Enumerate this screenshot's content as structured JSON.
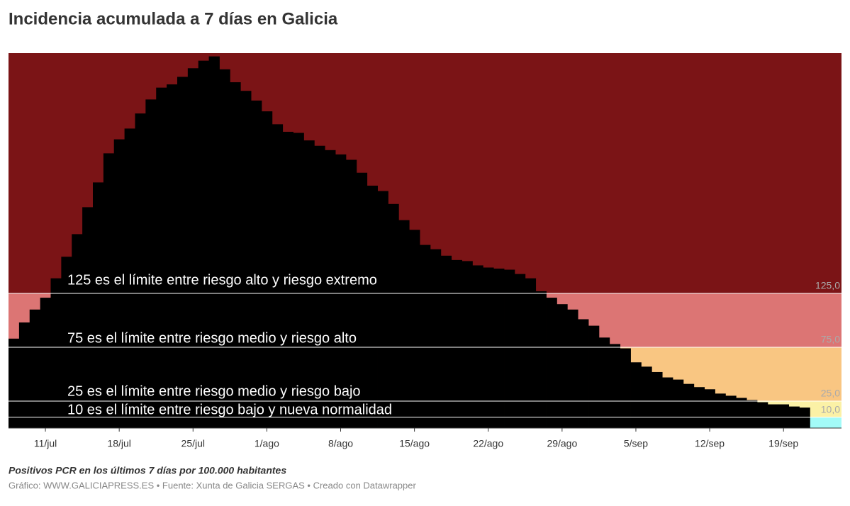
{
  "chart_data": {
    "type": "bar",
    "title": "Incidencia acumulada a 7 días en Galicia",
    "subtitle": "Positivos PCR en los últimos 7 días por 100.000 habitantes",
    "footer": "Gráfico: WWW.GALICIAPRESS.ES • Fuente: Xunta de Galicia SERGAS • Creado con Datawrapper",
    "categories": [
      null,
      null,
      null,
      "11/jul",
      null,
      null,
      null,
      null,
      null,
      null,
      "18/jul",
      null,
      null,
      null,
      null,
      null,
      null,
      "25/jul",
      null,
      null,
      null,
      null,
      null,
      null,
      "1/ago",
      null,
      null,
      null,
      null,
      null,
      null,
      "8/ago",
      null,
      null,
      null,
      null,
      null,
      null,
      "15/ago",
      null,
      null,
      null,
      null,
      null,
      null,
      "22/ago",
      null,
      null,
      null,
      null,
      null,
      null,
      "29/ago",
      null,
      null,
      null,
      null,
      null,
      null,
      "5/sep",
      null,
      null,
      null,
      null,
      null,
      null,
      "12/sep",
      null,
      null,
      null,
      null,
      null,
      null,
      "19/sep",
      null,
      null
    ],
    "values": [
      83,
      98,
      110,
      121,
      139,
      159,
      180,
      205,
      228,
      255,
      268,
      278,
      292,
      305,
      316,
      319,
      326,
      334,
      341,
      345,
      333,
      321,
      313,
      304,
      294,
      282,
      275,
      274,
      267,
      262,
      258,
      254,
      249,
      237,
      225,
      220,
      208,
      193,
      184,
      170,
      166,
      160,
      156,
      155,
      151,
      149,
      148,
      147,
      143,
      139,
      127,
      121,
      115,
      110,
      101,
      95,
      84,
      78,
      74,
      61,
      57,
      52,
      47,
      45,
      41,
      38,
      36,
      32,
      30,
      28,
      26,
      24,
      22,
      22,
      20,
      19
    ],
    "color": "#000000",
    "ylim": [
      0,
      348
    ],
    "yticks": [
      {
        "value": 10,
        "label": "10,0"
      },
      {
        "value": 25,
        "label": "25,0"
      },
      {
        "value": 75,
        "label": "75,0"
      },
      {
        "value": 125,
        "label": "125,0"
      }
    ],
    "bands": [
      {
        "from": 0,
        "to": 10,
        "color": "#a3fbf8"
      },
      {
        "from": 10,
        "to": 25,
        "color": "#fbf1a6"
      },
      {
        "from": 25,
        "to": 75,
        "color": "#f9c682"
      },
      {
        "from": 75,
        "to": 125,
        "color": "#dc7574"
      },
      {
        "from": 125,
        "to": 348,
        "color": "#7b1416"
      }
    ],
    "annotations": [
      "125 es el límite entre riesgo alto y riesgo extremo",
      "75 es el límite entre riesgo medio y riesgo alto",
      "25 es el límite entre riesgo medio y riesgo bajo",
      "10 es el límite entre riesgo bajo y nueva normalidad"
    ]
  }
}
